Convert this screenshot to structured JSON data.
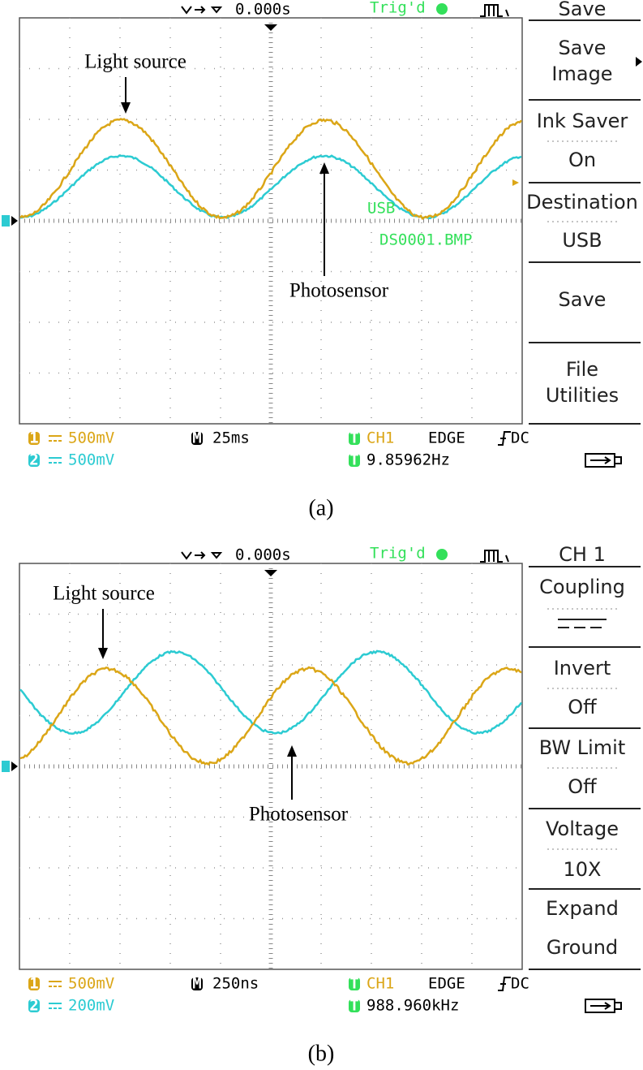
{
  "panels": [
    {
      "caption": "(a)",
      "time_offset": "0.000s",
      "trigger_state": "Trig'd",
      "annotations": {
        "light_source": "Light source",
        "photosensor": "Photosensor"
      },
      "overlay": [
        "USB",
        "DS0001.BMP"
      ],
      "menu": {
        "title": "Save",
        "items": [
          [
            "Save",
            "Image"
          ],
          [
            "Ink Saver",
            "On"
          ],
          [
            "Destination",
            "USB"
          ],
          [
            "Save"
          ],
          [
            "File",
            "Utilities"
          ]
        ]
      },
      "status": {
        "ch1_badge": "1",
        "ch1_scale": "500mV",
        "ch2_badge": "2",
        "ch2_scale": "500mV",
        "time_badge": "M",
        "time_scale": "25ms",
        "trig_badge": "T",
        "trig_source": "CH1",
        "trig_type": "EDGE",
        "trig_coupling": "DC",
        "freq_badge": "T",
        "frequency": "9.85962Hz"
      }
    },
    {
      "caption": "(b)",
      "time_offset": "0.000s",
      "trigger_state": "Trig'd",
      "annotations": {
        "light_source": "Light source",
        "photosensor": "Photosensor"
      },
      "overlay": [],
      "menu": {
        "title": "CH 1",
        "items": [
          [
            "Coupling"
          ],
          [
            "Invert",
            "Off"
          ],
          [
            "BW Limit",
            "Off"
          ],
          [
            "Voltage",
            "10X"
          ],
          [
            "Expand",
            "Ground"
          ]
        ]
      },
      "status": {
        "ch1_badge": "1",
        "ch1_scale": "500mV",
        "ch2_badge": "2",
        "ch2_scale": "200mV",
        "time_badge": "M",
        "time_scale": "250ns",
        "trig_badge": "T",
        "trig_source": "CH1",
        "trig_type": "EDGE",
        "trig_coupling": "DC",
        "freq_badge": "T",
        "frequency": "988.960kHz"
      }
    }
  ]
}
